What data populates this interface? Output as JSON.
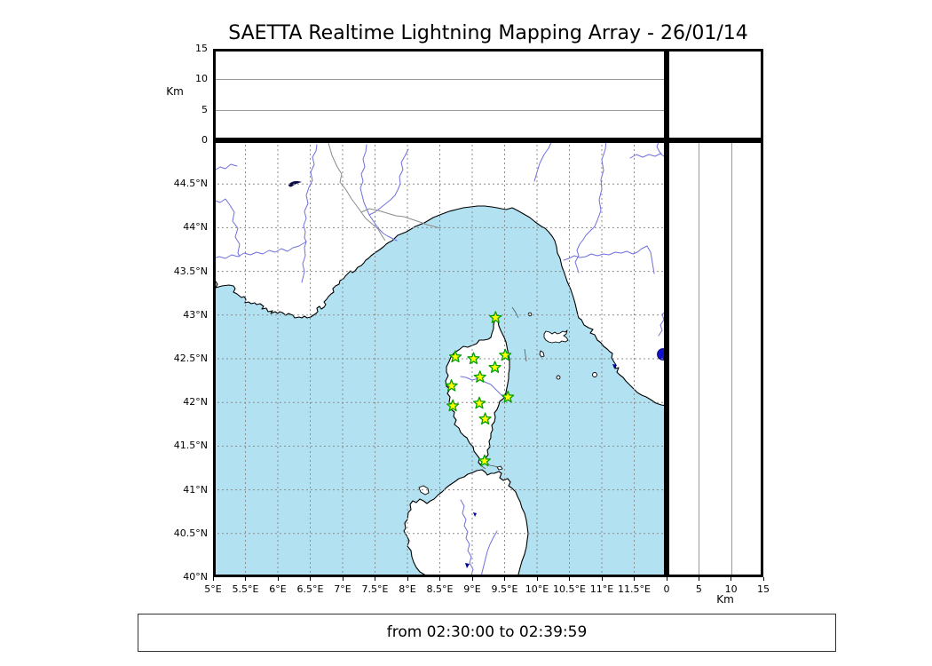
{
  "title": "SAETTA Realtime Lightning Mapping Array - 26/01/14",
  "footer": {
    "text": "from 02:30:00 to 02:39:59"
  },
  "altitude_axis": {
    "label": "Km",
    "range": [
      0,
      15
    ],
    "grid_km": [
      5,
      10
    ],
    "ticks": [
      {
        "value": 0,
        "label": "0"
      },
      {
        "value": 5,
        "label": "5"
      },
      {
        "value": 10,
        "label": "10"
      },
      {
        "value": 15,
        "label": "15"
      }
    ]
  },
  "map": {
    "lon_range": [
      5,
      12
    ],
    "lat_range": [
      40,
      45
    ],
    "lon_ticks": [
      {
        "value": 5,
        "label": "5°E"
      },
      {
        "value": 5.5,
        "label": "5.5°E"
      },
      {
        "value": 6,
        "label": "6°E"
      },
      {
        "value": 6.5,
        "label": "6.5°E"
      },
      {
        "value": 7,
        "label": "7°E"
      },
      {
        "value": 7.5,
        "label": "7.5°E"
      },
      {
        "value": 8,
        "label": "8°E"
      },
      {
        "value": 8.5,
        "label": "8.5°E"
      },
      {
        "value": 9,
        "label": "9°E"
      },
      {
        "value": 9.5,
        "label": "9.5°E"
      },
      {
        "value": 10,
        "label": "10°E"
      },
      {
        "value": 10.5,
        "label": "10.5°E"
      },
      {
        "value": 11,
        "label": "11°E"
      },
      {
        "value": 11.5,
        "label": "11.5°E"
      }
    ],
    "lat_ticks": [
      {
        "value": 40,
        "label": "40°N"
      },
      {
        "value": 40.5,
        "label": "40.5°N"
      },
      {
        "value": 41,
        "label": "41°N"
      },
      {
        "value": 41.5,
        "label": "41.5°N"
      },
      {
        "value": 42,
        "label": "42°N"
      },
      {
        "value": 42.5,
        "label": "42.5°N"
      },
      {
        "value": 43,
        "label": "43°N"
      },
      {
        "value": 43.5,
        "label": "43.5°N"
      },
      {
        "value": 44,
        "label": "44°N"
      },
      {
        "value": 44.5,
        "label": "44.5°N"
      }
    ],
    "stations": [
      {
        "lon": 9.36,
        "lat": 42.97
      },
      {
        "lon": 8.74,
        "lat": 42.52
      },
      {
        "lon": 9.02,
        "lat": 42.5
      },
      {
        "lon": 9.51,
        "lat": 42.54
      },
      {
        "lon": 9.35,
        "lat": 42.4
      },
      {
        "lon": 9.12,
        "lat": 42.29
      },
      {
        "lon": 8.68,
        "lat": 42.19
      },
      {
        "lon": 9.55,
        "lat": 42.06
      },
      {
        "lon": 9.11,
        "lat": 41.99
      },
      {
        "lon": 8.7,
        "lat": 41.96
      },
      {
        "lon": 9.2,
        "lat": 41.81
      },
      {
        "lon": 9.19,
        "lat": 41.33
      }
    ]
  },
  "colors": {
    "sea": "#b2e2f2",
    "land": "#ffffff",
    "coast": "#000000",
    "river": "#7070dd",
    "border_line": "#8a8a8a",
    "grid": "#8c8c8c",
    "lake": "#000099",
    "lake_bolsena": "#1212cc",
    "station_fill": "#ffff00",
    "station_edge": "#00a000"
  },
  "chart_data": {
    "type": "scatter",
    "title": "SAETTA Realtime Lightning Mapping Array - 26/01/14",
    "time_window": {
      "from": "02:30:00",
      "to": "02:39:59"
    },
    "panels": [
      {
        "name": "altitude-vs-longitude",
        "ylabel": "Km",
        "ylim": [
          0,
          15
        ],
        "yticks": [
          0,
          5,
          10,
          15
        ],
        "grid": [
          5,
          10
        ],
        "points": []
      },
      {
        "name": "map",
        "xlim_deg_e": [
          5,
          12
        ],
        "ylim_deg_n": [
          40,
          45
        ],
        "xticks_deg_e": [
          5,
          5.5,
          6,
          6.5,
          7,
          7.5,
          8,
          8.5,
          9,
          9.5,
          10,
          10.5,
          11,
          11.5
        ],
        "yticks_deg_n": [
          40,
          40.5,
          41,
          41.5,
          42,
          42.5,
          43,
          43.5,
          44,
          44.5
        ],
        "grid": "dashed",
        "points": []
      },
      {
        "name": "altitude-vs-latitude",
        "xlabel": "Km",
        "xlim": [
          0,
          15
        ],
        "xticks": [
          0,
          5,
          10,
          15
        ],
        "grid": [
          5,
          10
        ],
        "points": []
      },
      {
        "name": "altitude-histogram",
        "points": []
      }
    ],
    "lightning_sources": [],
    "stations_lon_lat": [
      [
        9.36,
        42.97
      ],
      [
        8.74,
        42.52
      ],
      [
        9.02,
        42.5
      ],
      [
        9.51,
        42.54
      ],
      [
        9.35,
        42.4
      ],
      [
        9.12,
        42.29
      ],
      [
        8.68,
        42.19
      ],
      [
        9.55,
        42.06
      ],
      [
        9.11,
        41.99
      ],
      [
        8.7,
        41.96
      ],
      [
        9.2,
        41.81
      ],
      [
        9.19,
        41.33
      ]
    ]
  }
}
